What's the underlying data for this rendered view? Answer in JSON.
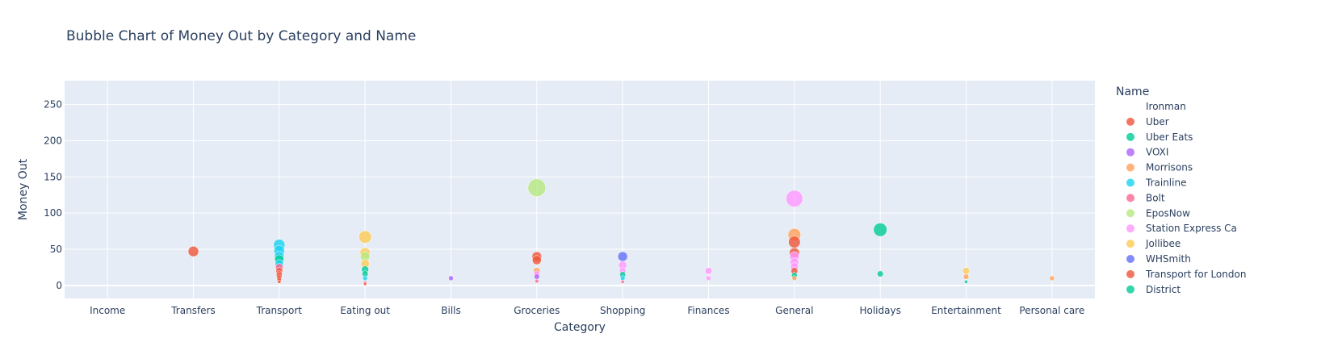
{
  "chart_data": {
    "type": "scatter",
    "title": "Bubble Chart of Money Out by Category and Name",
    "xlabel": "Category",
    "ylabel": "Money Out",
    "categories": [
      "Income",
      "Transfers",
      "Transport",
      "Eating out",
      "Bills",
      "Groceries",
      "Shopping",
      "Finances",
      "General",
      "Holidays",
      "Entertainment",
      "Personal care"
    ],
    "ylim": [
      -18,
      283
    ],
    "yticks": [
      0,
      50,
      100,
      150,
      200,
      250
    ],
    "grid": true,
    "legend_title": "Name",
    "legend_position": "right",
    "size_max_value": 250,
    "series": [
      {
        "name": "Ironman",
        "color": "#636efa",
        "points": []
      },
      {
        "name": "Uber",
        "color": "#EF553B",
        "points": [
          {
            "x": "Transport",
            "y": 8
          },
          {
            "x": "Transport",
            "y": 14
          },
          {
            "x": "Transport",
            "y": 20
          },
          {
            "x": "General",
            "y": 60
          },
          {
            "x": "General",
            "y": 45
          },
          {
            "x": "General",
            "y": 20
          }
        ]
      },
      {
        "name": "Uber Eats",
        "color": "#00cc96",
        "points": [
          {
            "x": "Eating out",
            "y": 22
          },
          {
            "x": "Eating out",
            "y": 16
          }
        ]
      },
      {
        "name": "VOXI",
        "color": "#ab63fa",
        "points": [
          {
            "x": "Bills",
            "y": 10
          },
          {
            "x": "Groceries",
            "y": 12
          }
        ]
      },
      {
        "name": "Morrisons",
        "color": "#FFA15A",
        "points": [
          {
            "x": "Groceries",
            "y": 20
          },
          {
            "x": "General",
            "y": 70
          },
          {
            "x": "General",
            "y": 10
          },
          {
            "x": "Entertainment",
            "y": 12
          },
          {
            "x": "Personal care",
            "y": 10
          }
        ]
      },
      {
        "name": "Trainline",
        "color": "#19d3f3",
        "points": [
          {
            "x": "Transport",
            "y": 56
          },
          {
            "x": "Transport",
            "y": 48
          },
          {
            "x": "Transport",
            "y": 40
          },
          {
            "x": "Transport",
            "y": 30
          },
          {
            "x": "Eating out",
            "y": 10
          },
          {
            "x": "Shopping",
            "y": 10
          }
        ]
      },
      {
        "name": "Bolt",
        "color": "#FF6692",
        "points": [
          {
            "x": "Transport",
            "y": 25
          },
          {
            "x": "Eating out",
            "y": 4
          },
          {
            "x": "Groceries",
            "y": 6
          },
          {
            "x": "Shopping",
            "y": 5
          }
        ]
      },
      {
        "name": "EposNow",
        "color": "#B6E880",
        "points": [
          {
            "x": "Groceries",
            "y": 135
          },
          {
            "x": "Eating out",
            "y": 40
          }
        ]
      },
      {
        "name": "Station Express Ca",
        "color": "#FF97FF",
        "points": [
          {
            "x": "General",
            "y": 120
          },
          {
            "x": "General",
            "y": 40
          },
          {
            "x": "General",
            "y": 32
          },
          {
            "x": "General",
            "y": 26
          },
          {
            "x": "Shopping",
            "y": 28
          },
          {
            "x": "Shopping",
            "y": 20
          },
          {
            "x": "Finances",
            "y": 20
          },
          {
            "x": "Finances",
            "y": 10
          },
          {
            "x": "Groceries",
            "y": 16
          }
        ]
      },
      {
        "name": "Jollibee",
        "color": "#FECB52",
        "points": [
          {
            "x": "Eating out",
            "y": 67
          },
          {
            "x": "Eating out",
            "y": 45
          },
          {
            "x": "Eating out",
            "y": 30
          },
          {
            "x": "Entertainment",
            "y": 20
          }
        ]
      },
      {
        "name": "WHSmith",
        "color": "#636efa",
        "points": [
          {
            "x": "Shopping",
            "y": 40
          }
        ]
      },
      {
        "name": "Transport for London",
        "color": "#EF553B",
        "points": [
          {
            "x": "Transport",
            "y": 16
          },
          {
            "x": "Transport",
            "y": 11
          },
          {
            "x": "Transport",
            "y": 5
          },
          {
            "x": "Transfers",
            "y": 47
          },
          {
            "x": "Groceries",
            "y": 40
          },
          {
            "x": "Groceries",
            "y": 35
          },
          {
            "x": "Eating out",
            "y": 2
          }
        ]
      },
      {
        "name": "District",
        "color": "#00cc96",
        "points": [
          {
            "x": "Holidays",
            "y": 77
          },
          {
            "x": "Holidays",
            "y": 16
          },
          {
            "x": "Transport",
            "y": 36
          },
          {
            "x": "Shopping",
            "y": 15
          },
          {
            "x": "General",
            "y": 14
          },
          {
            "x": "Entertainment",
            "y": 5
          }
        ]
      }
    ]
  }
}
